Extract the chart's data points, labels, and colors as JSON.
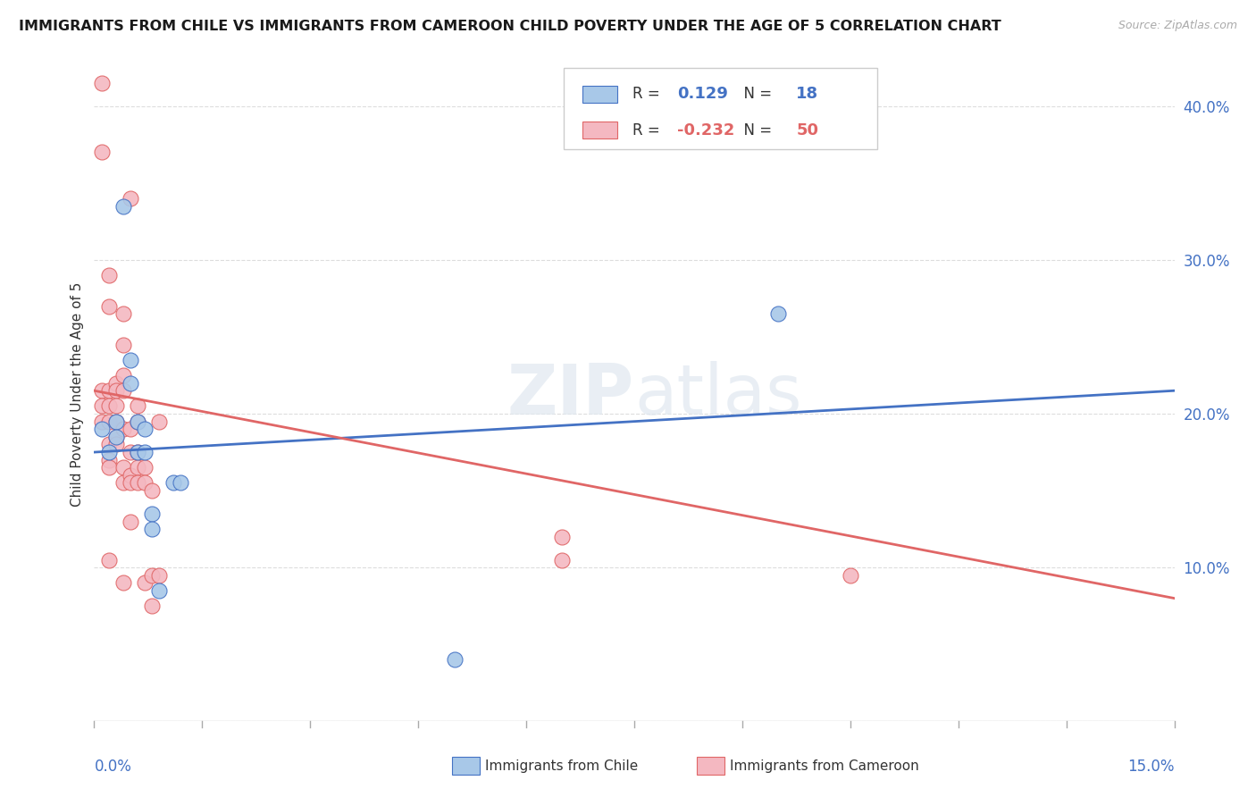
{
  "title": "IMMIGRANTS FROM CHILE VS IMMIGRANTS FROM CAMEROON CHILD POVERTY UNDER THE AGE OF 5 CORRELATION CHART",
  "source": "Source: ZipAtlas.com",
  "ylabel": "Child Poverty Under the Age of 5",
  "yticks": [
    0.0,
    0.1,
    0.2,
    0.3,
    0.4
  ],
  "ytick_labels": [
    "",
    "10.0%",
    "20.0%",
    "30.0%",
    "40.0%"
  ],
  "xmin": 0.0,
  "xmax": 0.15,
  "ymin": 0.0,
  "ymax": 0.425,
  "watermark": "ZIPatlas",
  "chile": {
    "R": 0.129,
    "N": 18,
    "color": "#a8c8e8",
    "edge_color": "#4472c4",
    "line_color": "#4472c4",
    "label": "Immigrants from Chile",
    "points": [
      [
        0.001,
        0.19
      ],
      [
        0.002,
        0.175
      ],
      [
        0.003,
        0.195
      ],
      [
        0.003,
        0.185
      ],
      [
        0.004,
        0.335
      ],
      [
        0.005,
        0.235
      ],
      [
        0.005,
        0.22
      ],
      [
        0.006,
        0.195
      ],
      [
        0.006,
        0.175
      ],
      [
        0.007,
        0.19
      ],
      [
        0.007,
        0.175
      ],
      [
        0.008,
        0.135
      ],
      [
        0.008,
        0.125
      ],
      [
        0.009,
        0.085
      ],
      [
        0.011,
        0.155
      ],
      [
        0.012,
        0.155
      ],
      [
        0.05,
        0.04
      ],
      [
        0.095,
        0.265
      ]
    ]
  },
  "cameroon": {
    "R": -0.232,
    "N": 50,
    "color": "#f4b8c1",
    "edge_color": "#e06666",
    "line_color": "#e06666",
    "label": "Immigrants from Cameroon",
    "points": [
      [
        0.001,
        0.415
      ],
      [
        0.001,
        0.37
      ],
      [
        0.001,
        0.215
      ],
      [
        0.001,
        0.205
      ],
      [
        0.001,
        0.195
      ],
      [
        0.002,
        0.29
      ],
      [
        0.002,
        0.27
      ],
      [
        0.002,
        0.215
      ],
      [
        0.002,
        0.205
      ],
      [
        0.002,
        0.195
      ],
      [
        0.002,
        0.18
      ],
      [
        0.002,
        0.17
      ],
      [
        0.002,
        0.165
      ],
      [
        0.002,
        0.105
      ],
      [
        0.003,
        0.22
      ],
      [
        0.003,
        0.215
      ],
      [
        0.003,
        0.205
      ],
      [
        0.003,
        0.195
      ],
      [
        0.003,
        0.185
      ],
      [
        0.003,
        0.18
      ],
      [
        0.004,
        0.265
      ],
      [
        0.004,
        0.245
      ],
      [
        0.004,
        0.225
      ],
      [
        0.004,
        0.215
      ],
      [
        0.004,
        0.19
      ],
      [
        0.004,
        0.165
      ],
      [
        0.004,
        0.155
      ],
      [
        0.004,
        0.09
      ],
      [
        0.005,
        0.34
      ],
      [
        0.005,
        0.19
      ],
      [
        0.005,
        0.175
      ],
      [
        0.005,
        0.16
      ],
      [
        0.005,
        0.155
      ],
      [
        0.005,
        0.13
      ],
      [
        0.006,
        0.205
      ],
      [
        0.006,
        0.195
      ],
      [
        0.006,
        0.175
      ],
      [
        0.006,
        0.165
      ],
      [
        0.006,
        0.155
      ],
      [
        0.007,
        0.165
      ],
      [
        0.007,
        0.155
      ],
      [
        0.007,
        0.09
      ],
      [
        0.008,
        0.15
      ],
      [
        0.008,
        0.095
      ],
      [
        0.008,
        0.075
      ],
      [
        0.009,
        0.195
      ],
      [
        0.009,
        0.095
      ],
      [
        0.065,
        0.12
      ],
      [
        0.065,
        0.105
      ],
      [
        0.105,
        0.095
      ]
    ]
  },
  "background_color": "#ffffff",
  "grid_color": "#dddddd",
  "title_color": "#1a1a1a",
  "axis_color": "#4472c4"
}
